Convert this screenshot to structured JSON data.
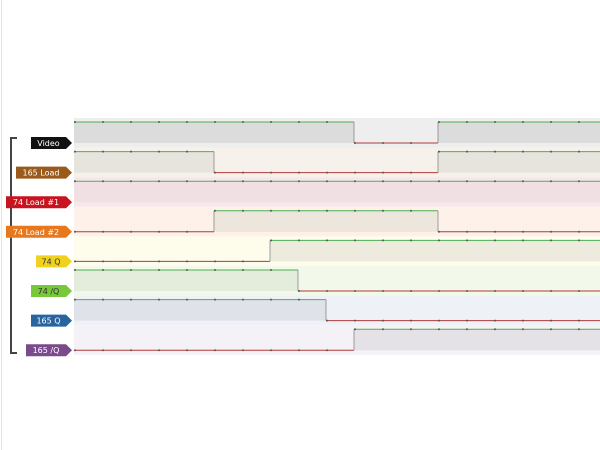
{
  "signals": [
    {
      "label": "Video",
      "color": "#111111",
      "text_color": "#ffffff",
      "band": "#eeeeee",
      "fill": "#dcdcdc",
      "levels": [
        1,
        1,
        1,
        1,
        1,
        1,
        1,
        1,
        1,
        1,
        0,
        0,
        0,
        1,
        1,
        1,
        1,
        1,
        1
      ]
    },
    {
      "label": "165 Load",
      "color": "#9a5a1a",
      "text_color": "#ffffff",
      "band": "#f6f1ea",
      "fill": "#e6e4dc",
      "levels": [
        1,
        1,
        1,
        1,
        1,
        0,
        0,
        0,
        0,
        0,
        0,
        0,
        0,
        1,
        1,
        1,
        1,
        1,
        1
      ]
    },
    {
      "label": "74 Load #1",
      "color": "#c8141e",
      "text_color": "#ffffff",
      "band": "#f7e7ea",
      "fill": "#f0e0e3",
      "levels": [
        1,
        1,
        1,
        1,
        1,
        1,
        1,
        1,
        1,
        1,
        1,
        1,
        1,
        1,
        1,
        1,
        1,
        1,
        1
      ]
    },
    {
      "label": "74 Load #2",
      "color": "#e8781e",
      "text_color": "#ffffff",
      "band": "#fdf1ea",
      "fill": "#ece6dc",
      "levels": [
        0,
        0,
        0,
        0,
        0,
        1,
        1,
        1,
        1,
        1,
        1,
        1,
        1,
        0,
        0,
        0,
        0,
        0,
        0
      ]
    },
    {
      "label": "74 Q",
      "color": "#f0d21e",
      "text_color": "#333333",
      "band": "#fefdec",
      "fill": "#ecebdd",
      "levels": [
        0,
        0,
        0,
        0,
        0,
        0,
        0,
        1,
        1,
        1,
        1,
        1,
        1,
        1,
        1,
        1,
        1,
        1,
        1
      ]
    },
    {
      "label": "74 /Q",
      "color": "#78c83c",
      "text_color": "#333333",
      "band": "#f2f8ea",
      "fill": "#e4ecdc",
      "levels": [
        1,
        1,
        1,
        1,
        1,
        1,
        1,
        1,
        0,
        0,
        0,
        0,
        0,
        0,
        0,
        0,
        0,
        0,
        0
      ]
    },
    {
      "label": "165 Q",
      "color": "#2864a0",
      "text_color": "#ffffff",
      "band": "#eef1f5",
      "fill": "#dfe2e8",
      "levels": [
        1,
        1,
        1,
        1,
        1,
        1,
        1,
        1,
        1,
        0,
        0,
        0,
        0,
        0,
        0,
        0,
        0,
        0,
        0
      ]
    },
    {
      "label": "165 /Q",
      "color": "#7a4a8c",
      "text_color": "#ffffff",
      "band": "#f4f2f6",
      "fill": "#e4e2e6",
      "levels": [
        0,
        0,
        0,
        0,
        0,
        0,
        0,
        0,
        0,
        0,
        1,
        1,
        1,
        1,
        1,
        1,
        1,
        1,
        1
      ]
    }
  ]
}
